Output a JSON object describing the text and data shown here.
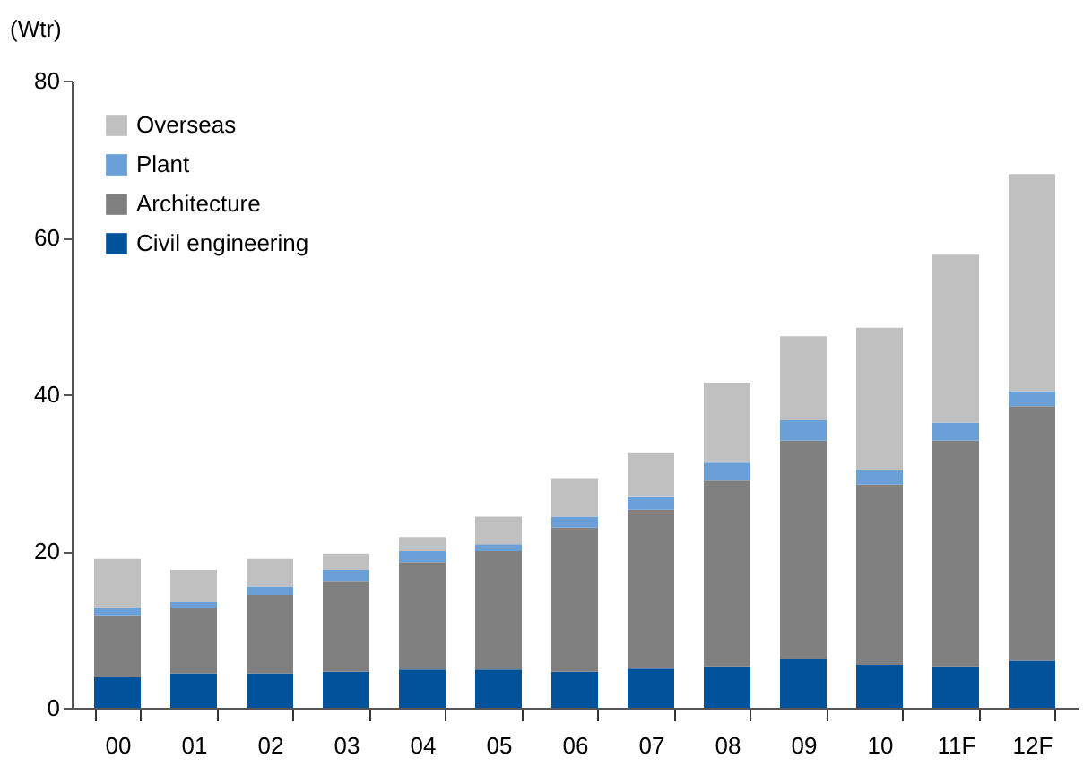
{
  "chart_data": {
    "type": "bar",
    "stacked": true,
    "ylabel": "(Wtr)",
    "categories": [
      "00",
      "01",
      "02",
      "03",
      "04",
      "05",
      "06",
      "07",
      "08",
      "09",
      "10",
      "11F",
      "12F"
    ],
    "series": [
      {
        "name": "Civil engineering",
        "color": "#00529b",
        "values": [
          3.9,
          4.4,
          4.4,
          4.6,
          4.9,
          4.9,
          4.6,
          5.0,
          5.3,
          6.2,
          5.5,
          5.3,
          6.0
        ]
      },
      {
        "name": "Architecture",
        "color": "#808080",
        "values": [
          7.9,
          8.4,
          10.0,
          11.6,
          13.7,
          15.1,
          18.4,
          20.3,
          23.7,
          27.9,
          23.0,
          28.8,
          32.5
        ]
      },
      {
        "name": "Plant",
        "color": "#6a9fd8",
        "values": [
          1.0,
          0.7,
          1.1,
          1.4,
          1.4,
          0.9,
          1.4,
          1.6,
          2.3,
          2.6,
          1.9,
          2.3,
          1.9
        ]
      },
      {
        "name": "Overseas",
        "color": "#c0c0c0",
        "values": [
          6.2,
          4.1,
          3.5,
          2.1,
          1.8,
          3.5,
          4.8,
          5.6,
          10.2,
          10.7,
          18.1,
          21.4,
          27.7
        ]
      }
    ],
    "ylim": [
      0,
      80
    ],
    "yticks": [
      0,
      20,
      40,
      60,
      80
    ],
    "grid": false,
    "legend": "top left"
  }
}
